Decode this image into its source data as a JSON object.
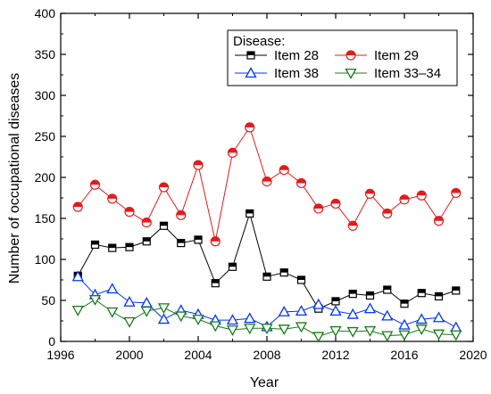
{
  "chart_data": {
    "type": "line",
    "title": "",
    "xlabel": "Year",
    "ylabel": "Number of occupational diseases",
    "xlim": [
      1996,
      2020
    ],
    "ylim": [
      0,
      400
    ],
    "xticks": [
      1996,
      2000,
      2004,
      2008,
      2012,
      2016,
      2020
    ],
    "yticks": [
      0,
      50,
      100,
      150,
      200,
      250,
      300,
      350,
      400
    ],
    "grid": false,
    "legend": {
      "title": "Disease:",
      "placement": "top-right",
      "columns": 2
    },
    "x": [
      1997,
      1998,
      1999,
      2000,
      2001,
      2002,
      2003,
      2004,
      2005,
      2006,
      2007,
      2008,
      2009,
      2010,
      2011,
      2012,
      2013,
      2014,
      2015,
      2016,
      2017,
      2018,
      2019
    ],
    "series": [
      {
        "name": "Item 28",
        "color": "#000000",
        "marker": "half-square",
        "values": [
          80,
          118,
          114,
          115,
          122,
          141,
          120,
          124,
          71,
          91,
          156,
          79,
          84,
          75,
          40,
          49,
          58,
          56,
          63,
          46,
          59,
          55,
          62
        ]
      },
      {
        "name": "Item 29",
        "color": "#e41a1c",
        "marker": "half-circle",
        "values": [
          164,
          191,
          174,
          158,
          145,
          188,
          154,
          215,
          122,
          230,
          261,
          195,
          209,
          193,
          162,
          168,
          141,
          180,
          156,
          173,
          178,
          147,
          181
        ]
      },
      {
        "name": "Item 38",
        "color": "#0033ff",
        "marker": "triangle-up",
        "values": [
          79,
          57,
          64,
          48,
          47,
          27,
          38,
          33,
          26,
          26,
          28,
          18,
          36,
          37,
          45,
          37,
          33,
          40,
          31,
          20,
          27,
          29,
          17
        ]
      },
      {
        "name": "Item 33–34",
        "color": "#1a7a1a",
        "marker": "triangle-down",
        "values": [
          38,
          51,
          36,
          24,
          37,
          41,
          31,
          27,
          19,
          14,
          16,
          16,
          15,
          18,
          6,
          13,
          12,
          13,
          7,
          8,
          15,
          9,
          8
        ]
      }
    ]
  }
}
